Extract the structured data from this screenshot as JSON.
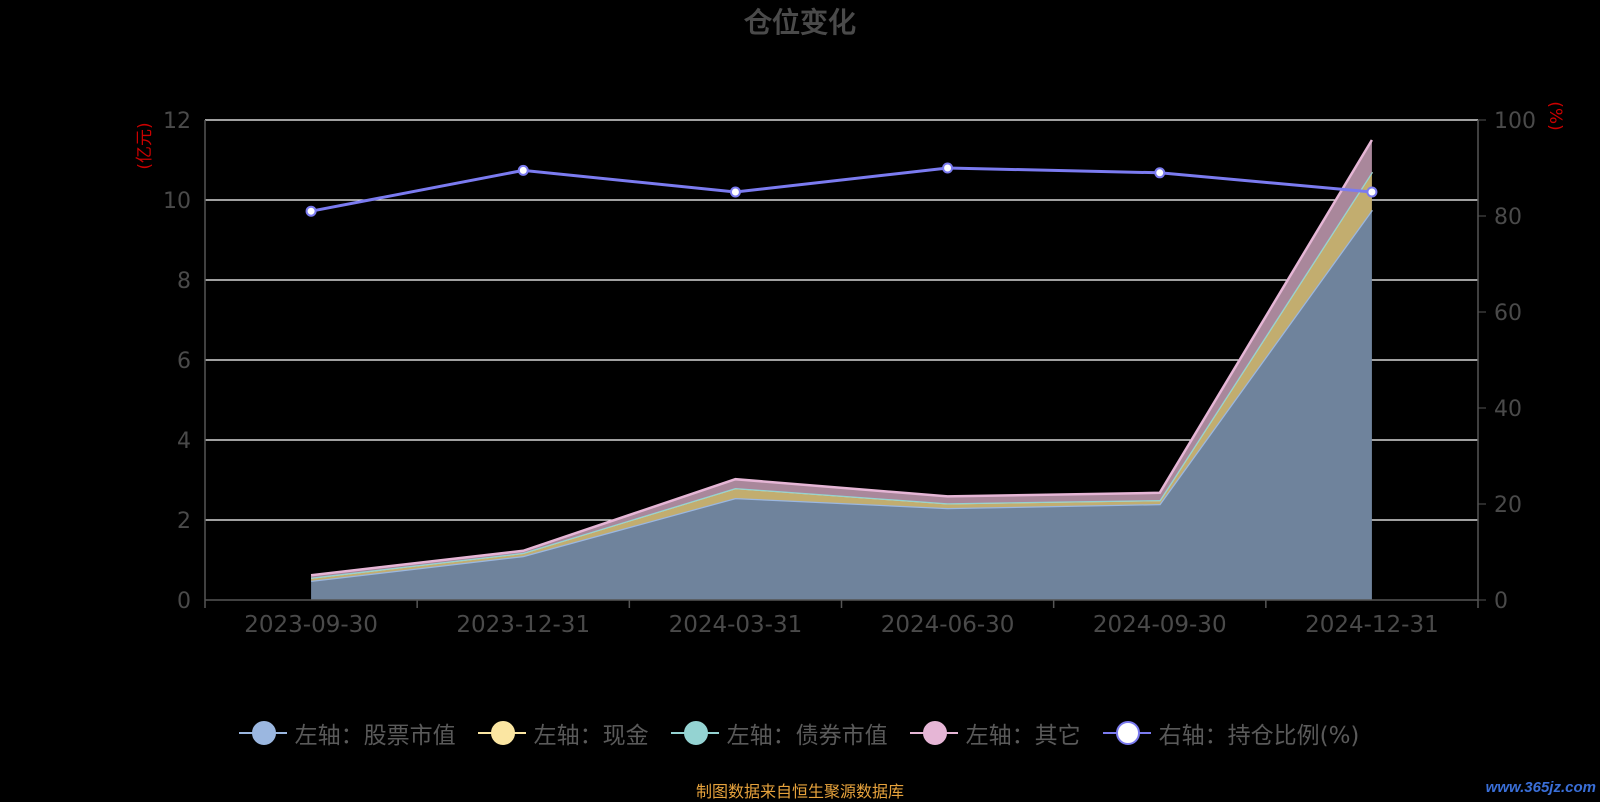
{
  "chart_data": {
    "type": "area",
    "title": "仓位变化",
    "categories": [
      "2023-09-30",
      "2023-12-31",
      "2024-03-31",
      "2024-06-30",
      "2024-09-30",
      "2024-12-31"
    ],
    "left_axis": {
      "label": "(亿元)",
      "min": 0,
      "max": 12,
      "ticks": [
        "0",
        "2",
        "4",
        "6",
        "8",
        "10",
        "12"
      ]
    },
    "right_axis": {
      "label": "(%)",
      "min": 0,
      "max": 100,
      "ticks": [
        "0",
        "20",
        "40",
        "60",
        "80",
        "100"
      ]
    },
    "grid": true,
    "stacked": true,
    "legend_position": "bottom",
    "series": [
      {
        "name": "左轴：股票市值",
        "axis": "left",
        "color": "#9bb7e0",
        "fill": "#6f839c",
        "values": [
          0.48,
          1.1,
          2.55,
          2.3,
          2.4,
          9.75
        ]
      },
      {
        "name": "左轴：现金",
        "axis": "left",
        "color": "#fbe6a2",
        "fill": "#c2ad6f",
        "values": [
          0.08,
          0.08,
          0.25,
          0.12,
          0.1,
          0.95
        ]
      },
      {
        "name": "左轴：债券市值",
        "axis": "left",
        "color": "#94d3d2",
        "fill": "#6fa8a8",
        "values": [
          0,
          0,
          0,
          0,
          0,
          0
        ]
      },
      {
        "name": "左轴：其它",
        "axis": "left",
        "color": "#e6b6d6",
        "fill": "#a9879b",
        "values": [
          0.06,
          0.05,
          0.22,
          0.17,
          0.18,
          0.8
        ]
      },
      {
        "name": "右轴：持仓比例(%)",
        "axis": "right",
        "color": "#7b7bf0",
        "fill": "#ffffff",
        "values": [
          81,
          89.5,
          85,
          90,
          89,
          85
        ]
      }
    ]
  },
  "footer": {
    "text": "制图数据来自恒生聚源数据库",
    "color": "#e6a23c"
  },
  "watermark": {
    "text": "www.365jz.com",
    "color": "#3a6fd8"
  },
  "colors": {
    "axis_label": "#cc0000",
    "tick_text": "#4a4a4a",
    "grid": "#ffffff",
    "axis_line": "#555555"
  }
}
